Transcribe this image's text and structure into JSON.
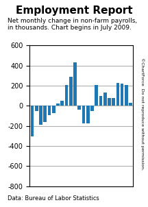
{
  "chart_data": {
    "type": "bar",
    "title": "Employment Report",
    "subtitle": "Net monthly change in non-farm payrolls,\nin thousands. Chart begins in July 2009.",
    "annotations": [
      "Data: Bureau of Labor Statistics",
      "©ChartForce  Do not reproduce without permission."
    ],
    "categories": [
      null,
      null,
      null,
      null,
      null,
      null,
      null,
      null,
      null,
      null,
      null,
      null,
      null,
      null,
      null,
      null,
      null,
      null,
      null,
      null,
      null,
      null,
      null,
      null
    ],
    "values": [
      -304,
      -54,
      -190,
      -159,
      -93,
      -71,
      22,
      49,
      208,
      290,
      431,
      -35,
      -175,
      -175,
      -50,
      210,
      100,
      130,
      80,
      75,
      230,
      220,
      210,
      30
    ],
    "ylim": [
      -800,
      600
    ],
    "yticks": [
      -800,
      -600,
      -400,
      -200,
      0,
      200,
      400,
      600
    ],
    "grid": true,
    "tick_labels": "y"
  }
}
